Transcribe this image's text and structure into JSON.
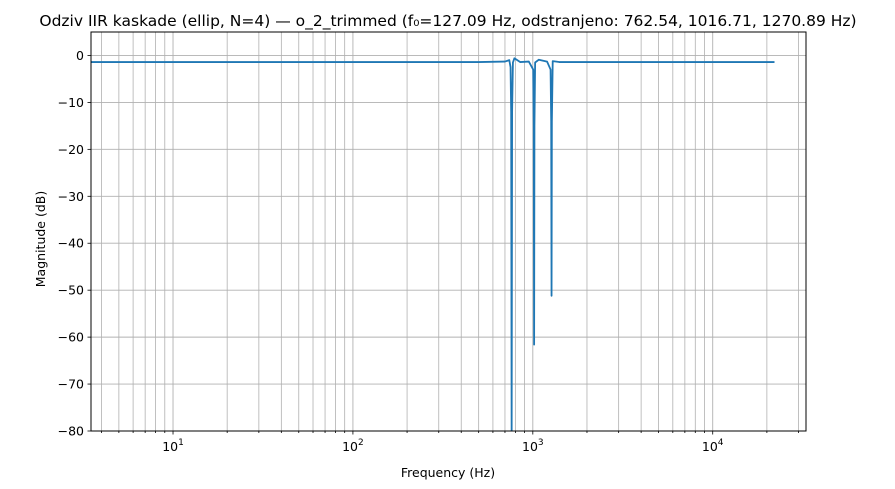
{
  "chart_data": {
    "type": "line",
    "title": "Odziv IIR kaskade (ellip, N=4) — o_2_trimmed (f₀=127.09 Hz, odstranjeno: 762.54, 1016.71, 1270.89 Hz)",
    "xlabel": "Frequency (Hz)",
    "ylabel": "Magnitude (dB)",
    "xscale": "log",
    "xlim": [
      3.5,
      33000
    ],
    "ylim": [
      -80,
      5
    ],
    "grid": true,
    "grid_which": "both",
    "x_major_ticks": [
      {
        "value": 10,
        "base": "10",
        "exp": "1"
      },
      {
        "value": 100,
        "base": "10",
        "exp": "2"
      },
      {
        "value": 1000,
        "base": "10",
        "exp": "3"
      },
      {
        "value": 10000,
        "base": "10",
        "exp": "4"
      }
    ],
    "y_ticks": [
      0,
      -10,
      -20,
      -30,
      -40,
      -50,
      -60,
      -70,
      -80
    ],
    "y_tick_labels": [
      "0",
      "−10",
      "−20",
      "−30",
      "−40",
      "−50",
      "−60",
      "−70",
      "−80"
    ],
    "line_color": "#1f77b4",
    "series": [
      {
        "x": [
          3.5,
          100,
          500,
          700,
          740,
          752,
          758,
          762.54,
          767,
          775,
          790,
          850,
          950,
          1005,
          1012,
          1016.71,
          1021,
          1030,
          1080,
          1200,
          1255,
          1265,
          1270.89,
          1276,
          1290,
          1400,
          3000,
          22050
        ],
        "y": [
          -1.4,
          -1.4,
          -1.4,
          -1.3,
          -1.0,
          -2.5,
          -12,
          -82,
          -12,
          -1.5,
          -0.6,
          -1.4,
          -1.3,
          -3,
          -15,
          -61.6,
          -15,
          -1.5,
          -0.9,
          -1.3,
          -3,
          -14,
          -51.2,
          -14,
          -1.2,
          -1.4,
          -1.4,
          -1.4
        ]
      }
    ]
  }
}
